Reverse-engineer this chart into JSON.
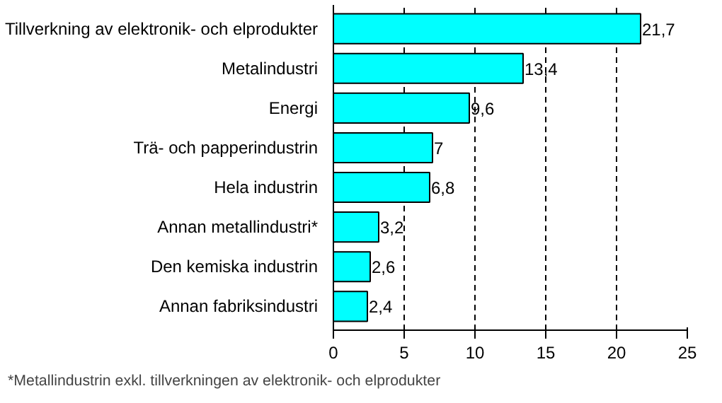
{
  "chart_data": {
    "type": "bar",
    "orientation": "horizontal",
    "categories": [
      "Tillverkning av elektronik- och elprodukter",
      "Metalindustri",
      "Energi",
      "Trä- och papperindustrin",
      "Hela industrin",
      "Annan metallindustri*",
      "Den kemiska industrin",
      "Annan fabriksindustri"
    ],
    "values": [
      21.7,
      13.4,
      9.6,
      7,
      6.8,
      3.2,
      2.6,
      2.4
    ],
    "value_labels": [
      "21,7",
      "13,4",
      "9,6",
      "7",
      "6,8",
      "3,2",
      "2,6",
      "2,4"
    ],
    "color": "#00ffff",
    "xlim": [
      0,
      25
    ],
    "xticks": [
      0,
      5,
      10,
      15,
      20,
      25
    ],
    "grid": "x",
    "annotations": [
      "*Metallindustrin exkl. tillverkningen av elektronik- och elprodukter"
    ]
  }
}
